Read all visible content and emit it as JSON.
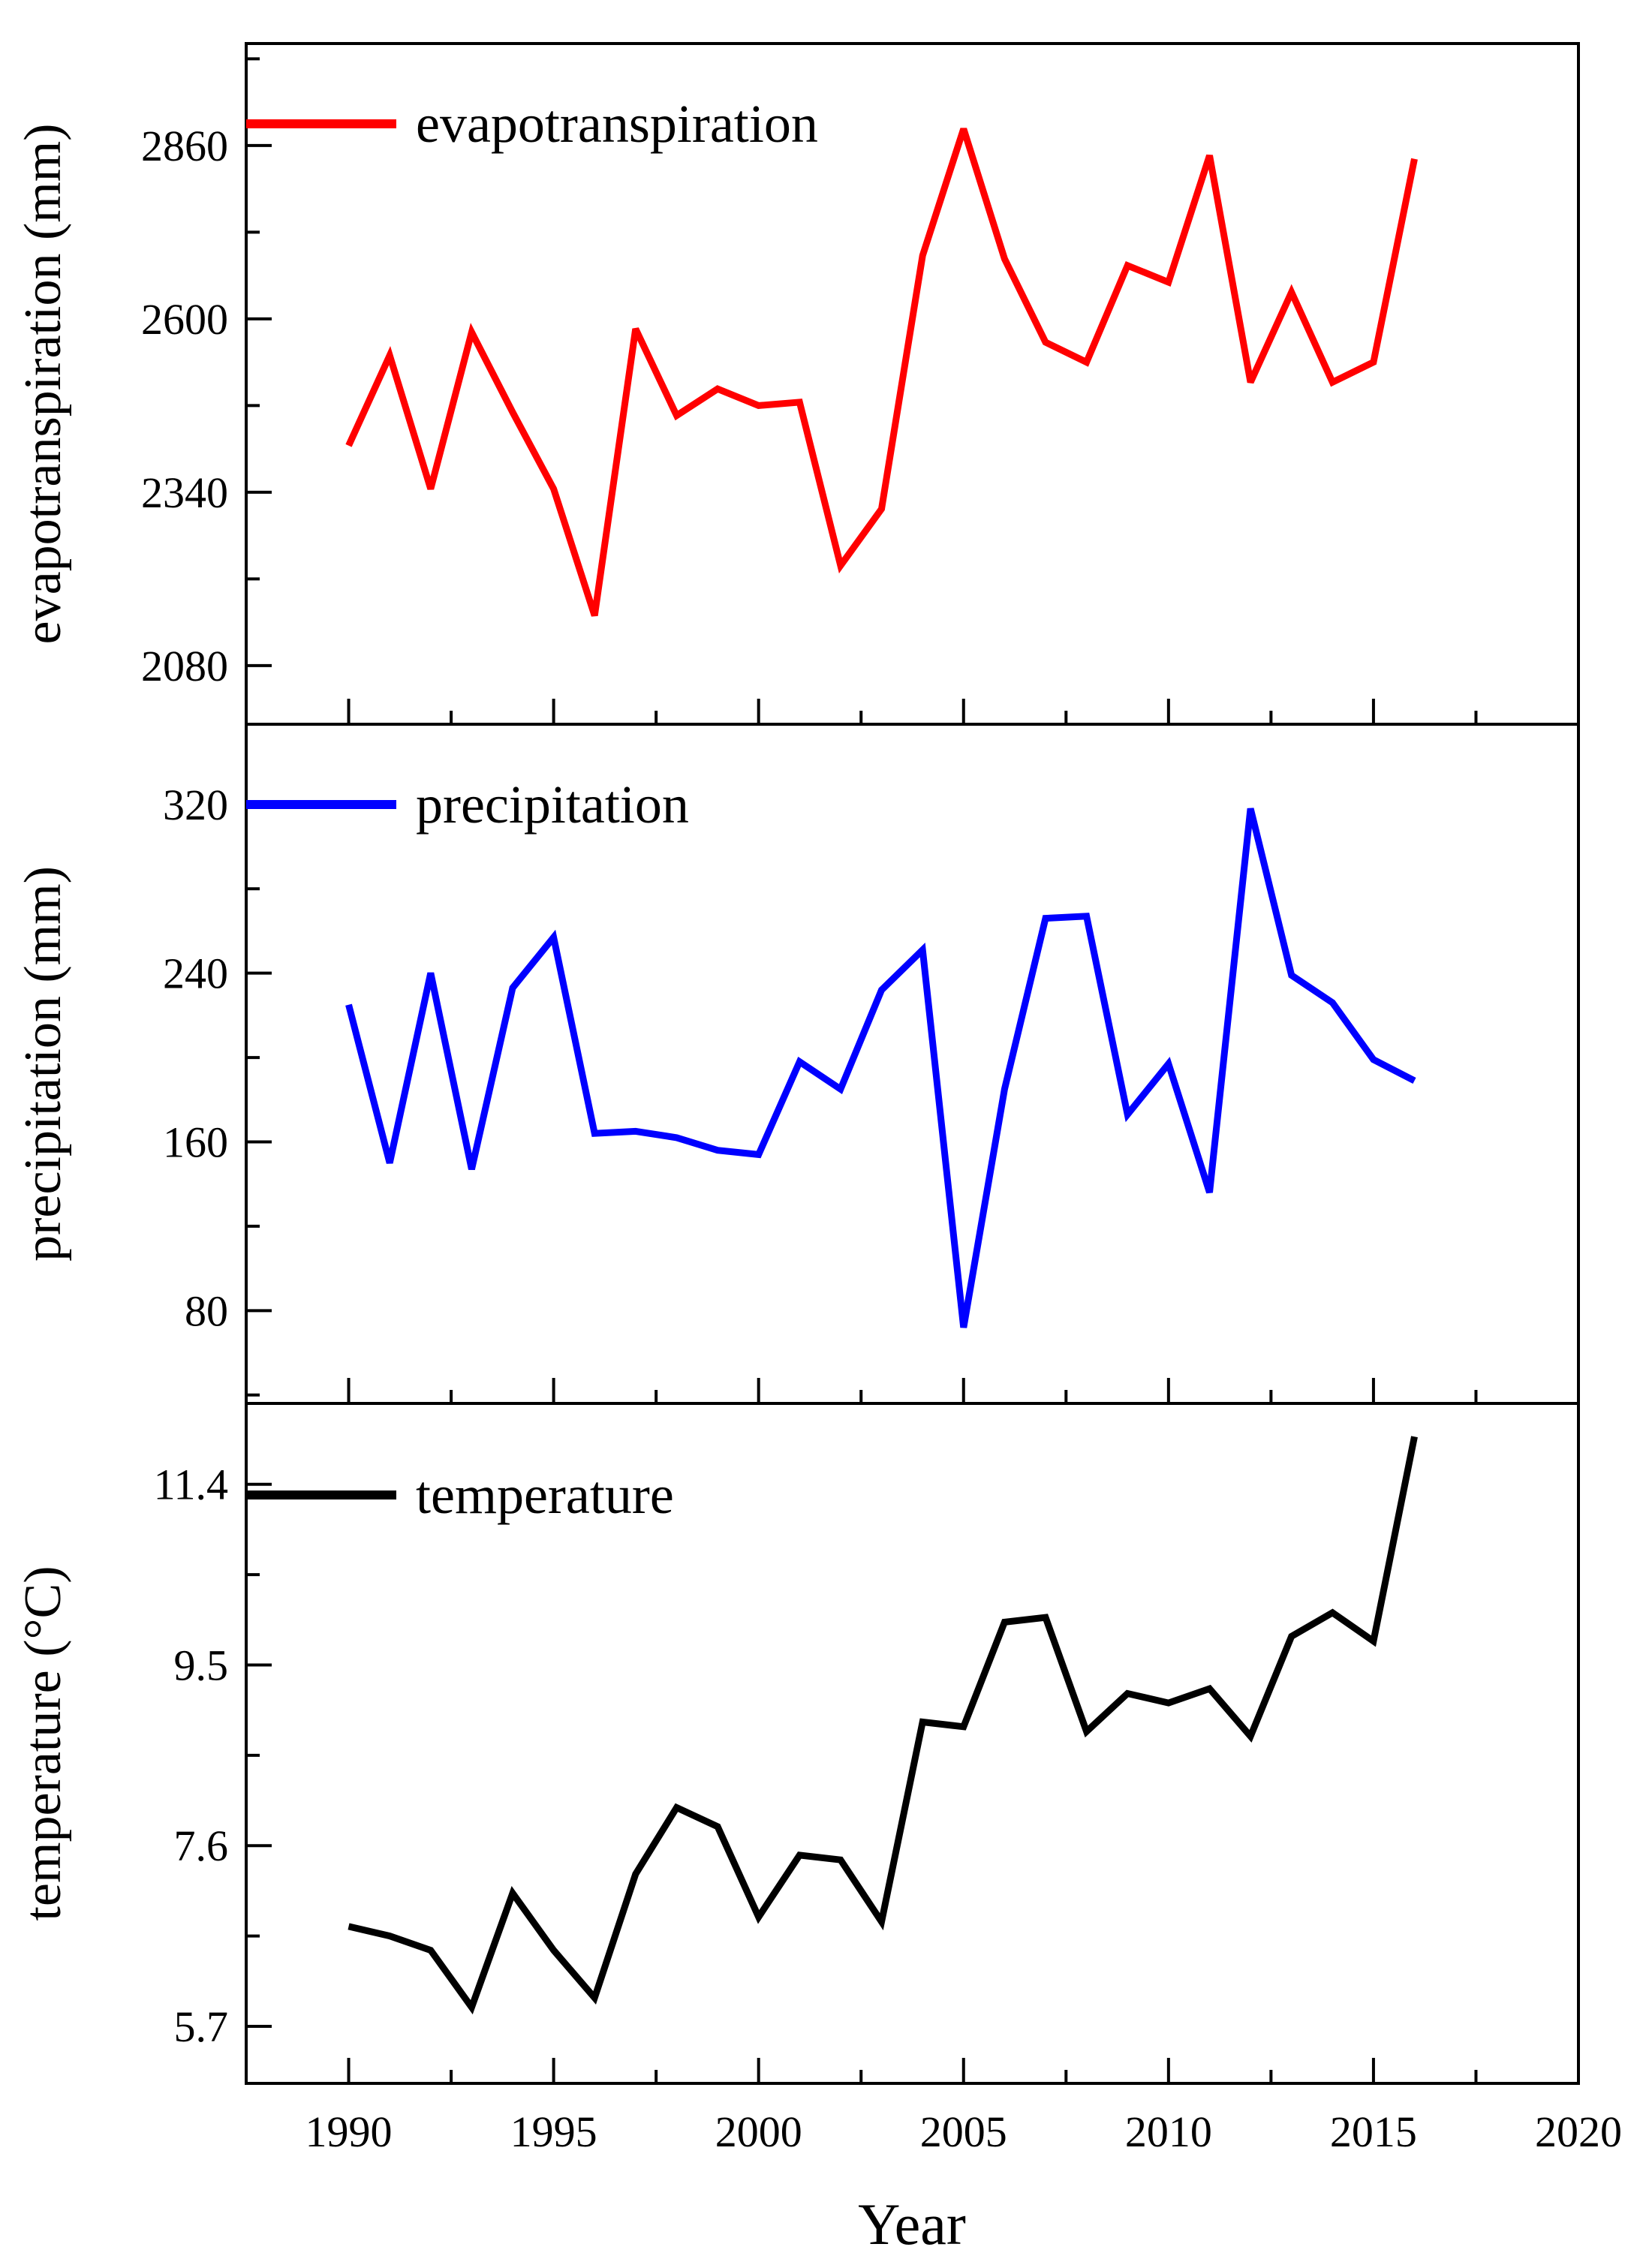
{
  "chart_data": [
    {
      "type": "line",
      "ylabel": "evapotranspiration (mm)",
      "legend": "evapotranspiration",
      "color": "#ff0000",
      "ylim": [
        1992,
        3013
      ],
      "yticks": [
        2080,
        2340,
        2600,
        2860
      ],
      "x": [
        1990,
        1991,
        1992,
        1993,
        1994,
        1995,
        1996,
        1997,
        1998,
        1999,
        2000,
        2001,
        2002,
        2003,
        2004,
        2005,
        2006,
        2007,
        2008,
        2009,
        2010,
        2011,
        2012,
        2013,
        2014,
        2015,
        2016
      ],
      "values": [
        2410,
        2545,
        2345,
        2580,
        2460,
        2345,
        2155,
        2585,
        2455,
        2495,
        2470,
        2475,
        2230,
        2315,
        2695,
        2885,
        2690,
        2565,
        2535,
        2680,
        2655,
        2845,
        2505,
        2640,
        2505,
        2535,
        2840
      ]
    },
    {
      "type": "line",
      "ylabel": "precipitation (mm)",
      "legend": "precipitation",
      "color": "#0000ff",
      "ylim": [
        36,
        358
      ],
      "yticks": [
        80,
        160,
        240,
        320
      ],
      "x": [
        1990,
        1991,
        1992,
        1993,
        1994,
        1995,
        1996,
        1997,
        1998,
        1999,
        2000,
        2001,
        2002,
        2003,
        2004,
        2005,
        2006,
        2007,
        2008,
        2009,
        2010,
        2011,
        2012,
        2013,
        2014,
        2015,
        2016
      ],
      "values": [
        225,
        150,
        240,
        147,
        233,
        257,
        164,
        165,
        162,
        156,
        154,
        198,
        185,
        232,
        251,
        72,
        185,
        266,
        267,
        173,
        197,
        136,
        318,
        239,
        226,
        199,
        189
      ]
    },
    {
      "type": "line",
      "ylabel": "temperature (°C)",
      "legend": "temperature",
      "color": "#000000",
      "ylim": [
        5.1,
        12.25
      ],
      "yticks": [
        5.7,
        7.6,
        9.5,
        11.4
      ],
      "x": [
        1990,
        1991,
        1992,
        1993,
        1994,
        1995,
        1996,
        1997,
        1998,
        1999,
        2000,
        2001,
        2002,
        2003,
        2004,
        2005,
        2006,
        2007,
        2008,
        2009,
        2010,
        2011,
        2012,
        2013,
        2014,
        2015,
        2016
      ],
      "values": [
        6.75,
        6.65,
        6.5,
        5.9,
        7.1,
        6.5,
        6.0,
        7.3,
        8.0,
        7.8,
        6.85,
        7.5,
        7.45,
        6.8,
        8.9,
        8.85,
        9.95,
        10.0,
        8.8,
        9.2,
        9.1,
        9.25,
        8.75,
        9.8,
        10.05,
        9.75,
        11.9
      ]
    }
  ],
  "x_axis": {
    "label": "Year",
    "xlim": [
      1987.5,
      2020.0
    ],
    "ticks": [
      1990,
      1995,
      2000,
      2005,
      2010,
      2015,
      2020
    ]
  }
}
